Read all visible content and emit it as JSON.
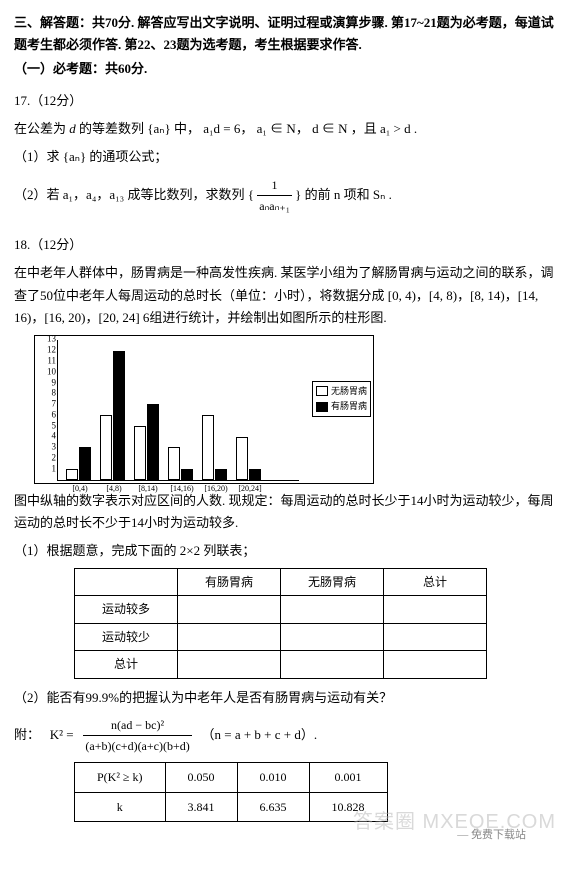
{
  "header": {
    "section_title": "三、解答题：共70分. 解答应写出文字说明、证明过程或演算步骤. 第17~21题为必考题，每道试题考生都必须作答. 第22、23题为选考题，考生根据要求作答.",
    "sub_title": "（一）必考题：共60分."
  },
  "q17": {
    "num": "17.（12分）",
    "line1_pre": "在公差为",
    "d": "d",
    "line1_mid1": "的等差数列 {",
    "an": "aₙ",
    "line1_mid2": "} 中，",
    "cond1": "a₁d = 6",
    "sep": "，",
    "cond2": "a₁ ∈ N",
    "cond3": "d ∈ N",
    "cond4": "，且 a₁ > d .",
    "part1": "（1）求 {aₙ} 的通项公式；",
    "part2_pre": "（2）若 a₁，a₄，a₁₃ 成等比数列，求数列 {",
    "frac_num": "1",
    "frac_den": "aₙaₙ₊₁",
    "part2_suf": "} 的前 n 项和 Sₙ ."
  },
  "q18": {
    "num": "18.（12分）",
    "intro": "在中老年人群体中，肠胃病是一种高发性疾病. 某医学小组为了解肠胃病与运动之间的联系，调查了50位中老年人每周运动的总时长（单位：小时），将数据分成 [0, 4)，[4, 8)，[8, 14)，[14, 16)，[16, 20)，[20, 24] 6组进行统计，并绘制出如图所示的柱形图.",
    "chart": {
      "type": "bar",
      "ylim": [
        0,
        13
      ],
      "yticks": [
        1,
        2,
        3,
        4,
        5,
        6,
        7,
        8,
        9,
        10,
        11,
        12,
        13
      ],
      "categories": [
        "[0,4)",
        "[4,8)",
        "[8,14)",
        "[14,16)",
        "[16,20)",
        "[20,24]"
      ],
      "series": [
        {
          "name": "无肠胃病",
          "color": "#ffffff",
          "values": [
            1,
            6,
            5,
            3,
            6,
            4
          ]
        },
        {
          "name": "有肠胃病",
          "color": "#000000",
          "values": [
            3,
            12,
            7,
            1,
            1,
            1
          ]
        }
      ],
      "legend": [
        "无肠胃病",
        "有肠胃病"
      ],
      "border_color": "#000000",
      "background": "#ffffff"
    },
    "after_chart": "图中纵轴的数字表示对应区间的人数. 现规定：每周运动的总时长少于14小时为运动较少，每周运动的总时长不少于14小时为运动较多.",
    "part1": "（1）根据题意，完成下面的 2×2 列联表；",
    "table1": {
      "cols": [
        "",
        "有肠胃病",
        "无肠胃病",
        "总计"
      ],
      "rows": [
        [
          "运动较多",
          "",
          "",
          ""
        ],
        [
          "运动较少",
          "",
          "",
          ""
        ],
        [
          "总计",
          "",
          "",
          ""
        ]
      ]
    },
    "part2": "（2）能否有99.9%的把握认为中老年人是否有肠胃病与运动有关？",
    "formula_label": "附：",
    "formula_lhs": "K²  =",
    "formula_num": "n(ad − bc)²",
    "formula_den": "(a+b)(c+d)(a+c)(b+d)",
    "formula_tail": "（n = a + b + c + d）.",
    "pk_table": {
      "row1": [
        "P(K² ≥ k)",
        "0.050",
        "0.010",
        "0.001"
      ],
      "row2": [
        "k",
        "3.841",
        "6.635",
        "10.828"
      ]
    }
  },
  "footer": "— 免费下载站",
  "watermark": "答案圈  MXEQE.COM"
}
